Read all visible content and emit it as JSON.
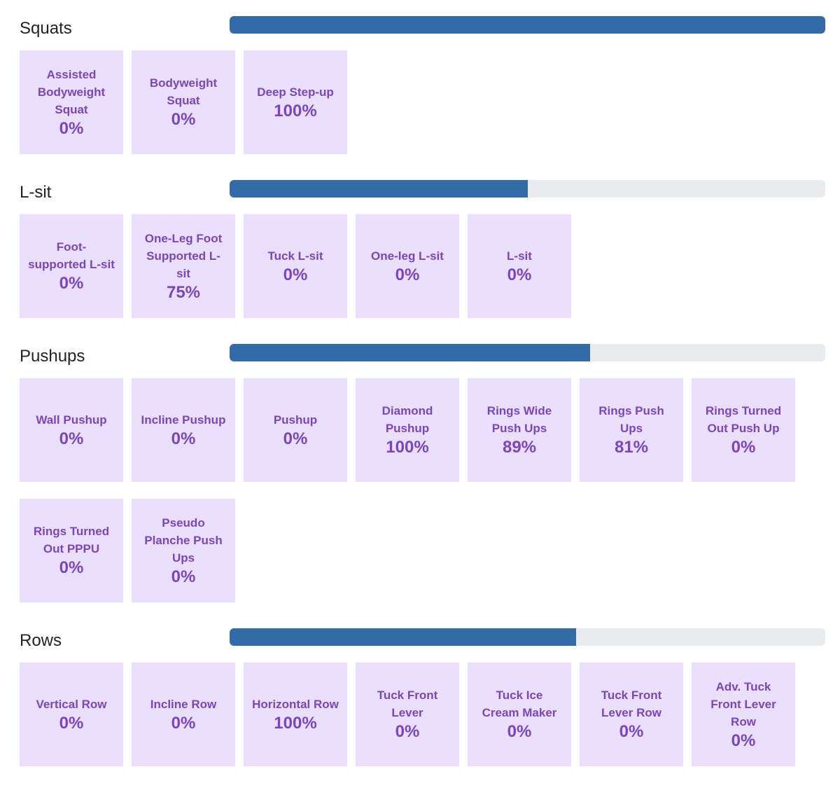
{
  "sections": [
    {
      "title": "Squats",
      "progress": 100,
      "exercises": [
        {
          "name": "Assisted Bodyweight Squat",
          "percent": "0%"
        },
        {
          "name": "Bodyweight Squat",
          "percent": "0%"
        },
        {
          "name": "Deep Step-up",
          "percent": "100%"
        }
      ]
    },
    {
      "title": "L-sit",
      "progress": 50,
      "exercises": [
        {
          "name": "Foot-supported L-sit",
          "percent": "0%"
        },
        {
          "name": "One-Leg Foot Supported L-sit",
          "percent": "75%"
        },
        {
          "name": "Tuck L-sit",
          "percent": "0%"
        },
        {
          "name": "One-leg L-sit",
          "percent": "0%"
        },
        {
          "name": "L-sit",
          "percent": "0%"
        }
      ]
    },
    {
      "title": "Pushups",
      "progress": 60.5,
      "exercises": [
        {
          "name": "Wall Pushup",
          "percent": "0%"
        },
        {
          "name": "Incline Pushup",
          "percent": "0%"
        },
        {
          "name": "Pushup",
          "percent": "0%"
        },
        {
          "name": "Diamond Pushup",
          "percent": "100%"
        },
        {
          "name": "Rings Wide Push Ups",
          "percent": "89%"
        },
        {
          "name": "Rings Push Ups",
          "percent": "81%"
        },
        {
          "name": "Rings Turned Out Push Up",
          "percent": "0%"
        },
        {
          "name": "Rings Turned Out PPPU",
          "percent": "0%"
        },
        {
          "name": "Pseudo Planche Push Ups",
          "percent": "0%"
        }
      ]
    },
    {
      "title": "Rows",
      "progress": 58.2,
      "exercises": [
        {
          "name": "Vertical Row",
          "percent": "0%"
        },
        {
          "name": "Incline Row",
          "percent": "0%"
        },
        {
          "name": "Horizontal Row",
          "percent": "100%"
        },
        {
          "name": "Tuck Front Lever",
          "percent": "0%"
        },
        {
          "name": "Tuck Ice Cream Maker",
          "percent": "0%"
        },
        {
          "name": "Tuck Front Lever Row",
          "percent": "0%"
        },
        {
          "name": "Adv. Tuck Front Lever Row",
          "percent": "0%"
        }
      ]
    }
  ]
}
